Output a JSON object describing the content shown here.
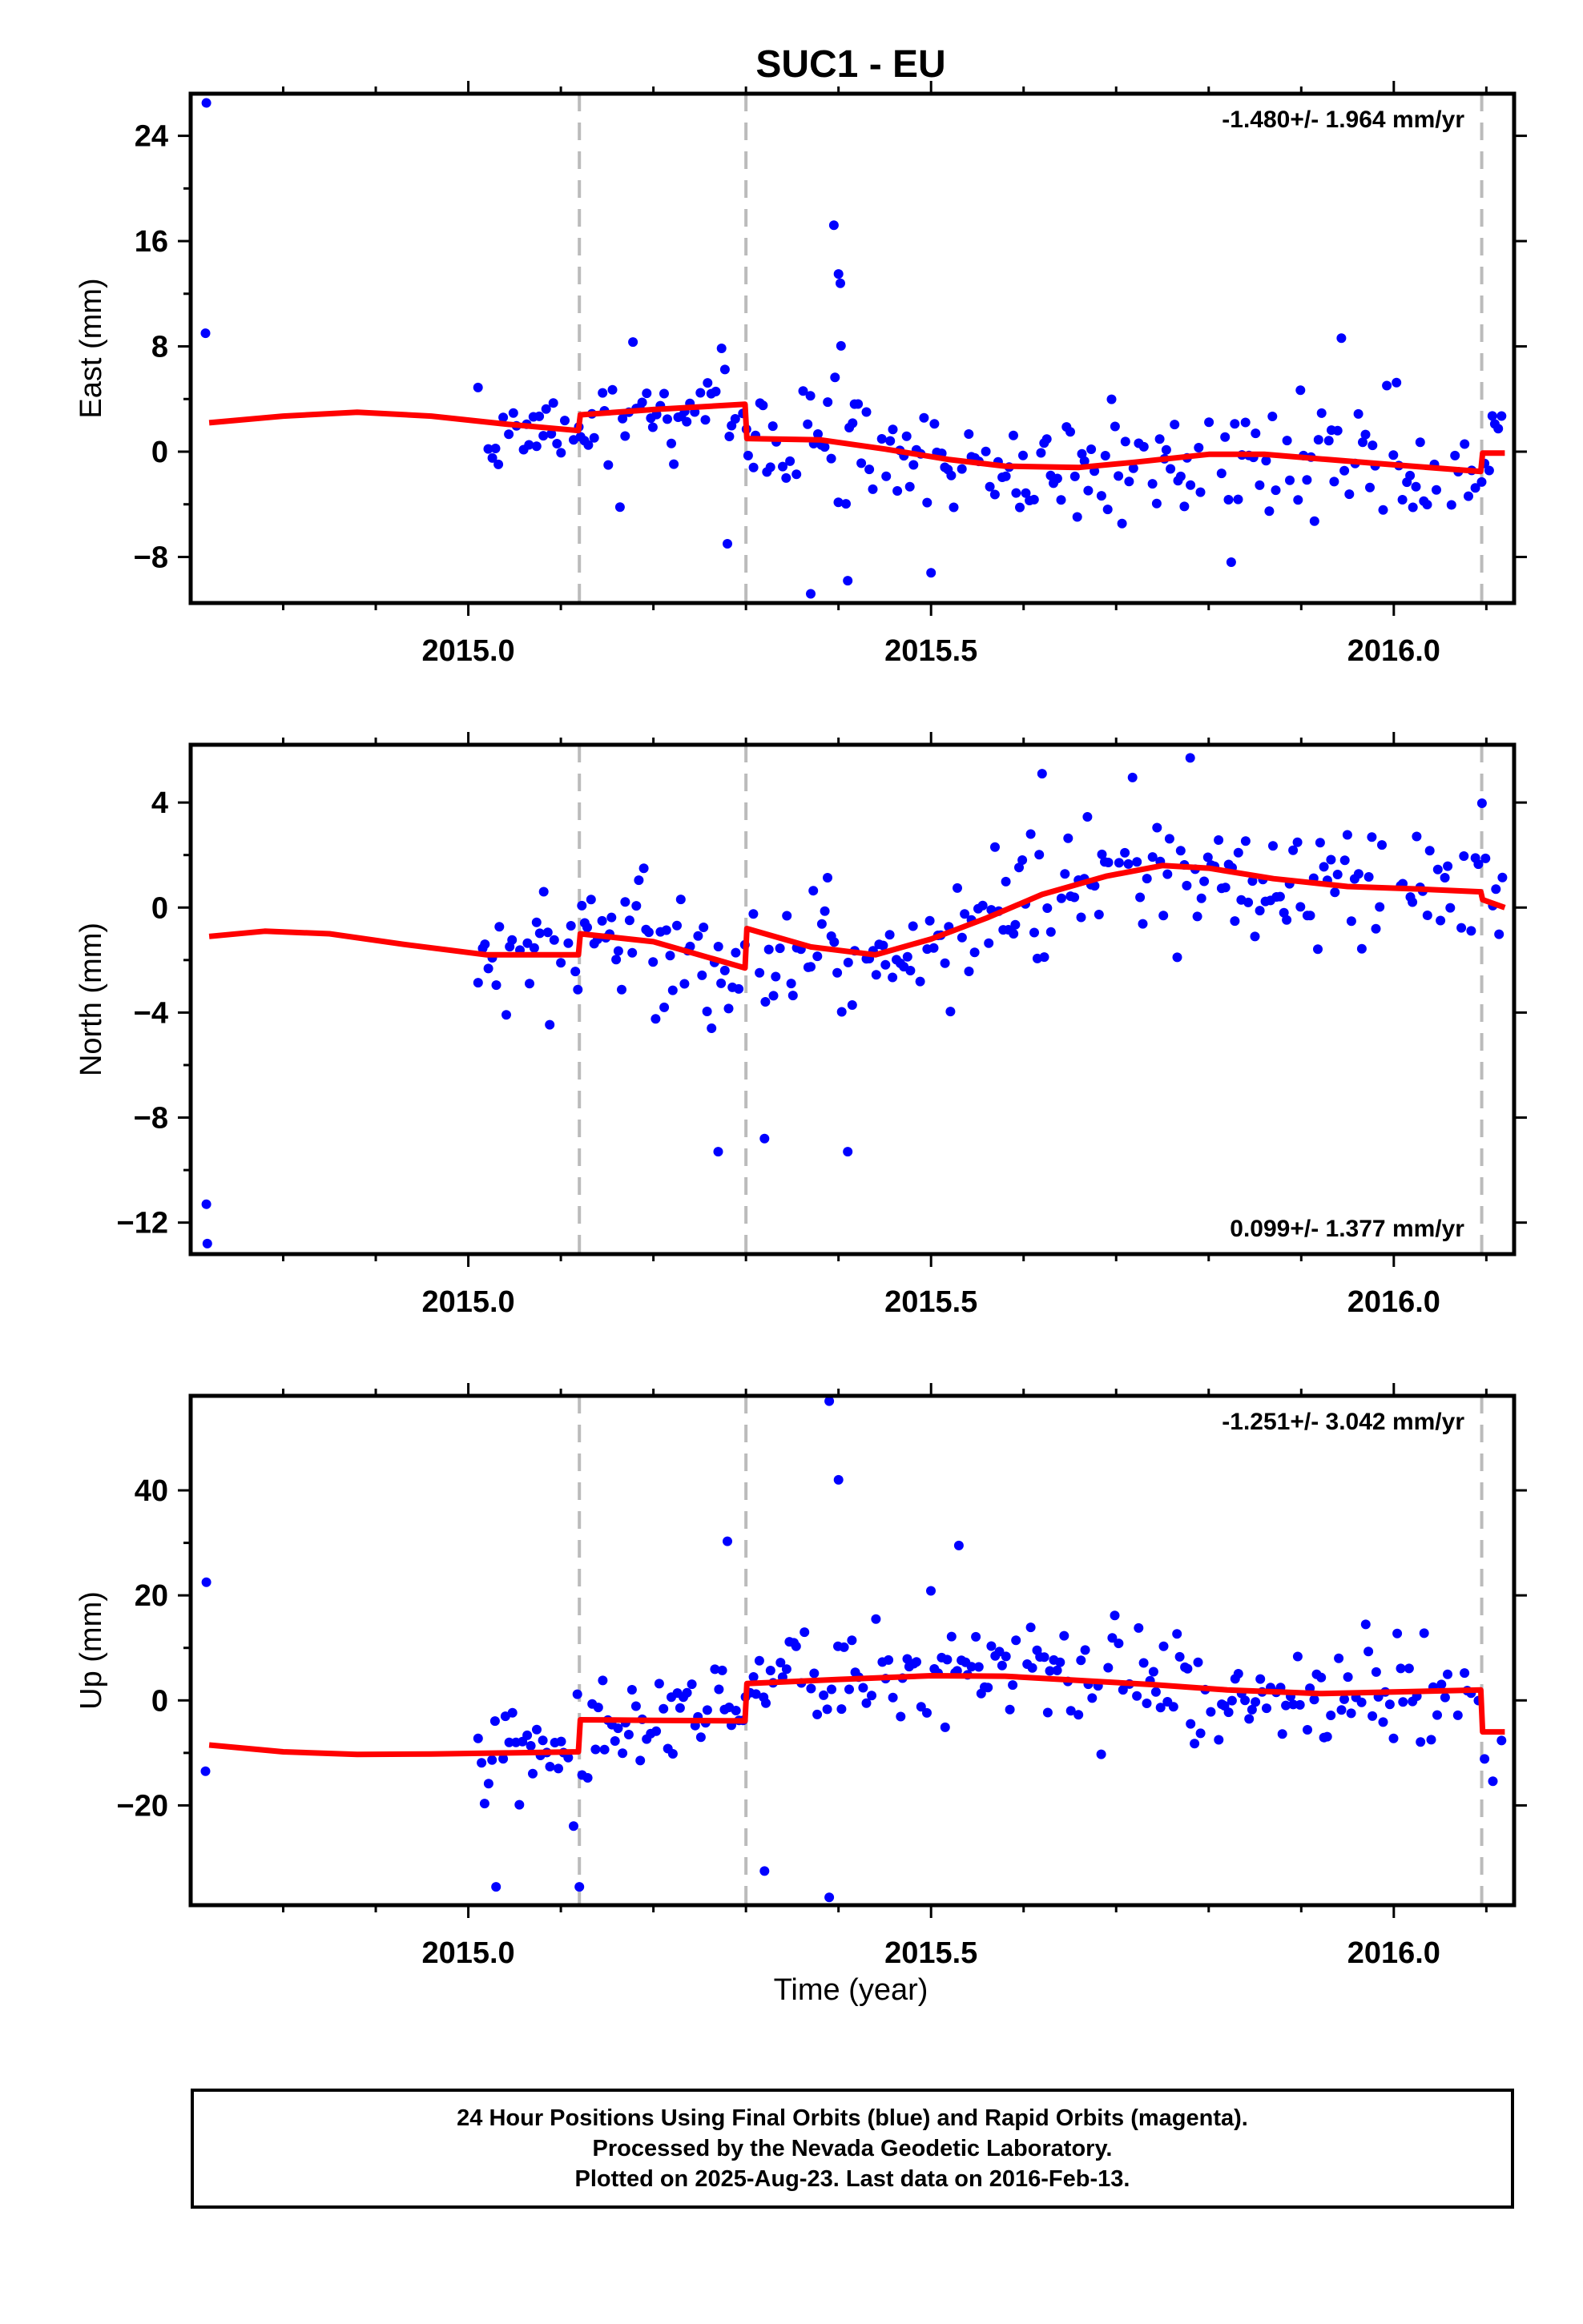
{
  "chart_data": [
    {
      "type": "scatter",
      "title": "SUC1 - EU",
      "ylabel": "East (mm)",
      "xlabel": "",
      "annotation": "-1.480+/- 1.964 mm/yr",
      "xlim": [
        2014.7,
        2016.13
      ],
      "ylim": [
        -11.5,
        27.2
      ],
      "yticks": [
        24,
        16,
        8,
        0,
        -8
      ],
      "ytick_labels": [
        "24",
        "16",
        "8",
        "0",
        "−8"
      ],
      "xticks": [
        2015.0,
        2015.5,
        2016.0
      ],
      "xtick_labels": [
        "2015.0",
        "2015.5",
        "2016.0"
      ],
      "event_lines": [
        2015.12,
        2015.3,
        2016.095
      ],
      "colors": {
        "points": "#0000ff",
        "model": "#ff0000",
        "event_line": "#bbbbbb"
      },
      "seed": 11,
      "sigma": 3.6,
      "outlier": 5.5,
      "extra_points": [
        [
          2014.717,
          26.5
        ],
        [
          2014.716,
          9.0
        ],
        [
          2015.395,
          17.2
        ],
        [
          2015.4,
          13.5
        ],
        [
          2015.402,
          12.8
        ],
        [
          2015.37,
          -10.8
        ],
        [
          2015.41,
          -9.8
        ],
        [
          2015.5,
          -9.2
        ],
        [
          2015.28,
          -7.0
        ]
      ],
      "model": [
        [
          2014.72,
          2.2
        ],
        [
          2014.8,
          2.7
        ],
        [
          2014.88,
          3.0
        ],
        [
          2014.96,
          2.7
        ],
        [
          2015.04,
          2.1
        ],
        [
          2015.119,
          1.6
        ],
        [
          2015.121,
          2.8
        ],
        [
          2015.2,
          3.2
        ],
        [
          2015.299,
          3.6
        ],
        [
          2015.301,
          1.0
        ],
        [
          2015.38,
          0.9
        ],
        [
          2015.45,
          0.2
        ],
        [
          2015.52,
          -0.6
        ],
        [
          2015.58,
          -1.1
        ],
        [
          2015.66,
          -1.2
        ],
        [
          2015.72,
          -0.8
        ],
        [
          2015.8,
          -0.2
        ],
        [
          2015.86,
          -0.2
        ],
        [
          2015.93,
          -0.6
        ],
        [
          2016.0,
          -1.0
        ],
        [
          2016.094,
          -1.5
        ],
        [
          2016.096,
          -0.1
        ],
        [
          2016.12,
          -0.1
        ]
      ],
      "data_start": 2015.01,
      "data_end": 2016.12,
      "n_points": 300
    },
    {
      "type": "scatter",
      "title": "",
      "ylabel": "North (mm)",
      "xlabel": "",
      "annotation": "0.099+/- 1.377 mm/yr",
      "xlim": [
        2014.7,
        2016.13
      ],
      "ylim": [
        -13.2,
        6.2
      ],
      "yticks": [
        4,
        0,
        -4,
        -8,
        -12
      ],
      "ytick_labels": [
        "4",
        "0",
        "−4",
        "−8",
        "−12"
      ],
      "xticks": [
        2015.0,
        2015.5,
        2016.0
      ],
      "xtick_labels": [
        "2015.0",
        "2015.5",
        "2016.0"
      ],
      "event_lines": [
        2015.12,
        2015.3,
        2016.095
      ],
      "colors": {
        "points": "#0000ff",
        "model": "#ff0000",
        "event_line": "#bbbbbb"
      },
      "seed": 23,
      "sigma": 1.9,
      "outlier": 3.2,
      "extra_points": [
        [
          2014.717,
          -11.3
        ],
        [
          2014.718,
          -12.8
        ],
        [
          2015.41,
          -9.3
        ],
        [
          2015.27,
          -9.3
        ],
        [
          2015.32,
          -8.8
        ],
        [
          2015.78,
          5.7
        ],
        [
          2015.62,
          5.1
        ]
      ],
      "model": [
        [
          2014.72,
          -1.1
        ],
        [
          2014.78,
          -0.9
        ],
        [
          2014.85,
          -1.0
        ],
        [
          2014.93,
          -1.4
        ],
        [
          2015.02,
          -1.8
        ],
        [
          2015.119,
          -1.8
        ],
        [
          2015.121,
          -1.0
        ],
        [
          2015.2,
          -1.3
        ],
        [
          2015.299,
          -2.3
        ],
        [
          2015.301,
          -0.8
        ],
        [
          2015.37,
          -1.5
        ],
        [
          2015.44,
          -1.8
        ],
        [
          2015.5,
          -1.2
        ],
        [
          2015.56,
          -0.4
        ],
        [
          2015.62,
          0.5
        ],
        [
          2015.69,
          1.2
        ],
        [
          2015.75,
          1.6
        ],
        [
          2015.8,
          1.5
        ],
        [
          2015.87,
          1.1
        ],
        [
          2015.95,
          0.8
        ],
        [
          2016.03,
          0.7
        ],
        [
          2016.094,
          0.6
        ],
        [
          2016.096,
          0.3
        ],
        [
          2016.12,
          0.0
        ]
      ],
      "data_start": 2015.01,
      "data_end": 2016.12,
      "n_points": 300
    },
    {
      "type": "scatter",
      "title": "",
      "ylabel": "Up (mm)",
      "xlabel": "Time (year)",
      "annotation": "-1.251+/- 3.042 mm/yr",
      "xlim": [
        2014.7,
        2016.13
      ],
      "ylim": [
        -39,
        58
      ],
      "yticks": [
        40,
        20,
        0,
        -20
      ],
      "ytick_labels": [
        "40",
        "20",
        "0",
        "−20"
      ],
      "xticks": [
        2015.0,
        2015.5,
        2016.0
      ],
      "xtick_labels": [
        "2015.0",
        "2015.5",
        "2016.0"
      ],
      "event_lines": [
        2015.12,
        2015.3,
        2016.095
      ],
      "colors": {
        "points": "#0000ff",
        "model": "#ff0000",
        "event_line": "#bbbbbb"
      },
      "seed": 37,
      "sigma": 8.5,
      "outlier": 14,
      "extra_points": [
        [
          2014.717,
          22.5
        ],
        [
          2014.716,
          -13.5
        ],
        [
          2015.39,
          57
        ],
        [
          2015.4,
          42
        ],
        [
          2015.03,
          -35.5
        ],
        [
          2015.12,
          -35.5
        ],
        [
          2015.39,
          -37.5
        ],
        [
          2015.28,
          30.3
        ],
        [
          2015.32,
          -32.5
        ],
        [
          2015.53,
          29.5
        ]
      ],
      "model": [
        [
          2014.72,
          -8.5
        ],
        [
          2014.8,
          -9.8
        ],
        [
          2014.88,
          -10.3
        ],
        [
          2014.96,
          -10.2
        ],
        [
          2015.04,
          -10.0
        ],
        [
          2015.119,
          -9.8
        ],
        [
          2015.121,
          -3.7
        ],
        [
          2015.2,
          -3.8
        ],
        [
          2015.299,
          -3.9
        ],
        [
          2015.301,
          3.2
        ],
        [
          2015.4,
          4.0
        ],
        [
          2015.5,
          4.7
        ],
        [
          2015.58,
          4.6
        ],
        [
          2015.66,
          3.8
        ],
        [
          2015.74,
          3.0
        ],
        [
          2015.82,
          2.0
        ],
        [
          2015.92,
          1.3
        ],
        [
          2016.0,
          1.6
        ],
        [
          2016.094,
          2.0
        ],
        [
          2016.096,
          -6.0
        ],
        [
          2016.12,
          -6.0
        ]
      ],
      "data_start": 2015.01,
      "data_end": 2016.12,
      "n_points": 300
    }
  ],
  "footer": {
    "line1": "24 Hour Positions Using Final Orbits (blue) and Rapid Orbits (magenta).",
    "line2": "Processed by the Nevada Geodetic Laboratory.",
    "line3": "Plotted on 2025-Aug-23. Last data on 2016-Feb-13."
  }
}
